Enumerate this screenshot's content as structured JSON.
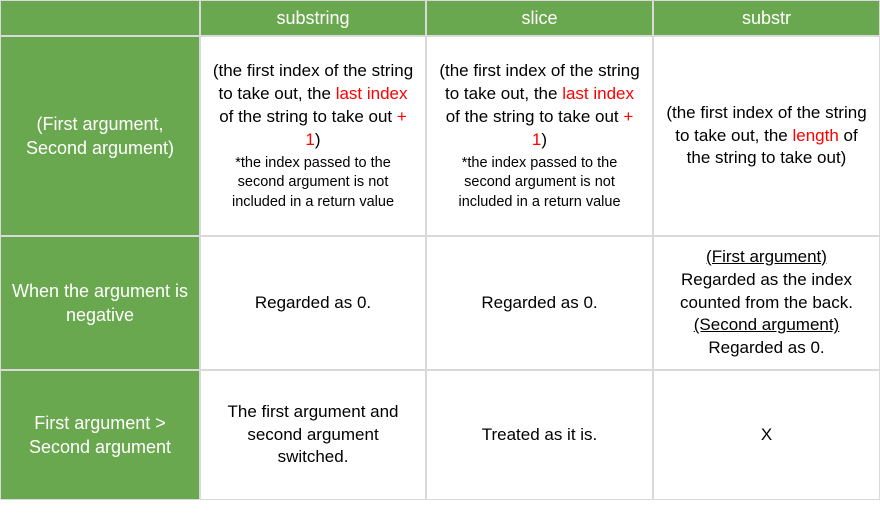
{
  "colors": {
    "header_bg": "#6aa84f",
    "header_text": "#ffffff",
    "body_bg": "#ffffff",
    "body_text": "#000000",
    "highlight": "#ff0000",
    "border": "#d9d9d9"
  },
  "typography": {
    "font_family": "Arial, Helvetica, sans-serif",
    "header_fontsize_pt": 14,
    "body_fontsize_pt": 13,
    "note_fontsize_pt": 11
  },
  "table": {
    "columns": [
      "",
      "substring",
      "slice",
      "substr"
    ],
    "row_headers": [
      "(First argument, Second argument)",
      "When the argument is negative",
      "First argument > Second argument"
    ],
    "cells": {
      "r1": {
        "substring": {
          "pre": "(the first index of the string to take out, the ",
          "hl1": "last index",
          "mid": " of the string to take out ",
          "hl2": "+ 1",
          "post": ")",
          "note": "*the index passed to the second argument is not included in a return value"
        },
        "slice": {
          "pre": "(the first index of the string to take out, the ",
          "hl1": "last index",
          "mid": " of the string to take out ",
          "hl2": "+ 1",
          "post": ")",
          "note": "*the index passed to the second argument is not included in a return value"
        },
        "substr": {
          "pre": "(the first index of the string to take out, the ",
          "hl1": "length",
          "post": " of the string to take out)"
        }
      },
      "r2": {
        "substring": "Regarded as 0.",
        "slice": "Regarded as 0.",
        "substr": {
          "h1": "(First argument)",
          "l1": "Regarded as the index counted from the back.",
          "h2": "(Second argument)",
          "l2": "Regarded as 0."
        }
      },
      "r3": {
        "substring": "The first argument and second argument switched.",
        "slice": "Treated as it is.",
        "substr": "X"
      }
    }
  }
}
